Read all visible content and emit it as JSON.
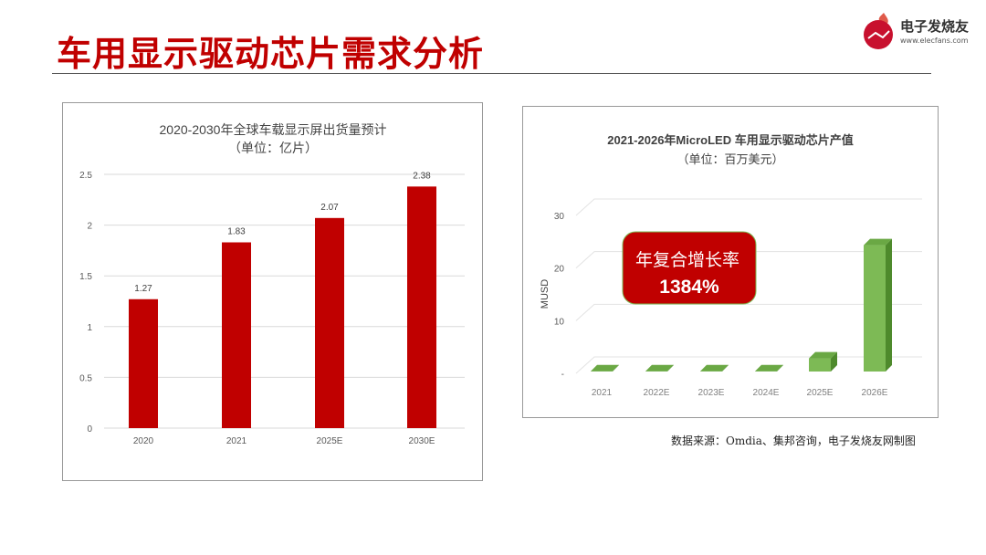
{
  "page_title": "车用显示驱动芯片需求分析",
  "logo": {
    "name": "电子发烧友",
    "url": "www.elecfans.com"
  },
  "source_note": "数据来源：Omdia、集邦咨询，电子发烧友网制图",
  "colors": {
    "accent": "#c00000",
    "bar_red": "#c00000",
    "bar_green": "#7dba55",
    "bar_green_dark": "#4e8a2c"
  },
  "chart_data": [
    {
      "type": "bar",
      "title": "2020-2030年全球车载显示屏出货量预计",
      "subtitle": "（单位：亿片）",
      "categories": [
        "2020",
        "2021",
        "2025E",
        "2030E"
      ],
      "values": [
        1.27,
        1.83,
        2.07,
        2.38
      ],
      "data_labels": [
        "1.27",
        "1.83",
        "2.07",
        "2.38"
      ],
      "yticks": [
        "0",
        "0.5",
        "1",
        "1.5",
        "2",
        "2.5"
      ],
      "ylim": [
        0,
        2.5
      ],
      "grid": true
    },
    {
      "type": "bar",
      "title": "2021-2026年MicroLED 车用显示驱动芯片产值",
      "subtitle": "（单位：百万美元）",
      "ylabel": "MUSD",
      "categories": [
        "2021",
        "2022E",
        "2023E",
        "2024E",
        "2025E",
        "2026E"
      ],
      "values": [
        0.05,
        0.05,
        0.05,
        0.05,
        2.5,
        24
      ],
      "yticks": [
        "-",
        "10",
        "20",
        "30"
      ],
      "ylim": [
        0,
        30
      ],
      "grid": true,
      "annotation": {
        "line1": "年复合增长率",
        "line2": "1384%"
      }
    }
  ]
}
